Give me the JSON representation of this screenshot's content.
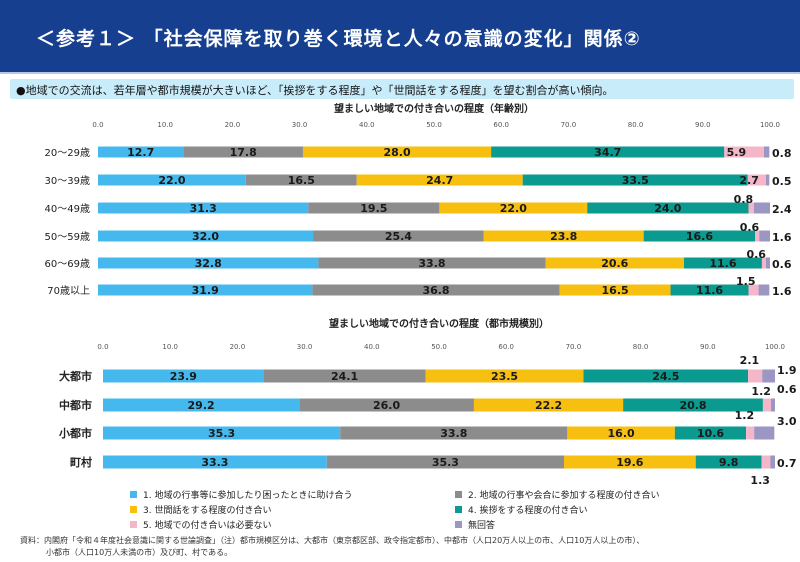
{
  "header": {
    "title": "＜参考１＞ 「社会保障を取り巻く環境と人々の意識の変化」関係②"
  },
  "summary": {
    "text": "●地域での交流は、若年層や都市規模が大きいほど、「挨拶をする程度」や「世間話をする程度」を望む割合が高い傾向。"
  },
  "colors": [
    "#45b9ee",
    "#8c8c8c",
    "#f7bf10",
    "#0a9a8f",
    "#f6b6c9",
    "#9b96c2"
  ],
  "legend": [
    "1. 地域の行事等に参加したり困ったときに助け合う",
    "2. 地域の行事や会合に参加する程度の付き合い",
    "3. 世間話をする程度の付き合い",
    "4. 挨拶をする程度の付き合い",
    "5. 地域での付き合いは必要ない",
    "無回答"
  ],
  "chart_data": [
    {
      "type": "bar",
      "orientation": "horizontal-stacked",
      "title": "望ましい地域での付き合いの程度（年齢別）",
      "xlim": [
        0,
        100
      ],
      "ticks": [
        "0.0",
        "10.0",
        "20.0",
        "30.0",
        "40.0",
        "50.0",
        "60.0",
        "70.0",
        "80.0",
        "90.0",
        "100.0"
      ],
      "categories": [
        "20～29歳",
        "30～39歳",
        "40～49歳",
        "50～59歳",
        "60～69歳",
        "70歳以上"
      ],
      "series": [
        {
          "name": "1. 地域の行事等に参加したり困ったときに助け合う",
          "values": [
            12.7,
            22.0,
            31.3,
            32.0,
            32.8,
            31.9
          ]
        },
        {
          "name": "2. 地域の行事や会合に参加する程度の付き合い",
          "values": [
            17.8,
            16.5,
            19.5,
            25.4,
            33.8,
            36.8
          ]
        },
        {
          "name": "3. 世間話をする程度の付き合い",
          "values": [
            28.0,
            24.7,
            22.0,
            23.8,
            20.6,
            16.5
          ]
        },
        {
          "name": "4. 挨拶をする程度の付き合い",
          "values": [
            34.7,
            33.5,
            24.0,
            16.6,
            11.6,
            11.6
          ]
        },
        {
          "name": "5. 地域での付き合いは必要ない",
          "values": [
            5.9,
            2.7,
            0.8,
            0.6,
            0.6,
            1.5
          ]
        },
        {
          "name": "無回答",
          "values": [
            0.8,
            0.5,
            2.4,
            1.6,
            0.6,
            1.6
          ]
        }
      ]
    },
    {
      "type": "bar",
      "orientation": "horizontal-stacked",
      "title": "望ましい地域での付き合いの程度（都市規模別）",
      "xlim": [
        0,
        100
      ],
      "ticks": [
        "0.0",
        "10.0",
        "20.0",
        "30.0",
        "40.0",
        "50.0",
        "60.0",
        "70.0",
        "80.0",
        "90.0",
        "100.0"
      ],
      "categories": [
        "大都市",
        "中都市",
        "小都市",
        "町村"
      ],
      "series": [
        {
          "name": "1. 地域の行事等に参加したり困ったときに助け合う",
          "values": [
            23.9,
            29.2,
            35.3,
            33.3
          ]
        },
        {
          "name": "2. 地域の行事や会合に参加する程度の付き合い",
          "values": [
            24.1,
            26.0,
            33.8,
            35.3
          ]
        },
        {
          "name": "3. 世間話をする程度の付き合い",
          "values": [
            23.5,
            22.2,
            16.0,
            19.6
          ]
        },
        {
          "name": "4. 挨拶をする程度の付き合い",
          "values": [
            24.5,
            20.8,
            10.6,
            9.8
          ]
        },
        {
          "name": "5. 地域での付き合いは必要ない",
          "values": [
            2.1,
            1.2,
            1.2,
            1.3
          ]
        },
        {
          "name": "無回答",
          "values": [
            1.9,
            0.6,
            3.0,
            0.7
          ]
        }
      ]
    }
  ],
  "footnote": [
    "資料：内閣府「令和４年度社会意識に関する世論調査」（注）都市規模区分は、大都市（東京都区部、政令指定都市）、中都市（人口20万人以上の市、人口10万人以上の市）、",
    "小都市（人口10万人未満の市）及び町、村である。"
  ]
}
